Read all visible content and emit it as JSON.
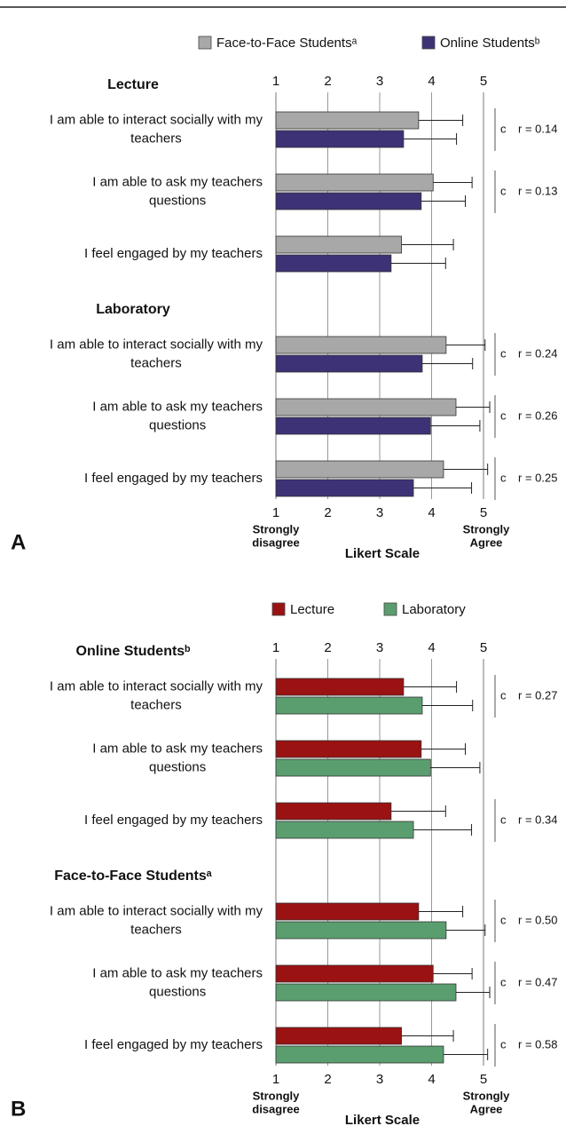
{
  "chart_data": [
    {
      "type": "bar",
      "orientation": "horizontal",
      "panel_label": "A",
      "group_titles": [
        "Lecture",
        "Laboratory"
      ],
      "categories": [
        [
          "I am able to interact socially with my",
          "teachers"
        ],
        [
          "I am able to ask my teachers",
          "questions"
        ],
        [
          "I feel engaged by my teachers"
        ],
        [
          "I am able to interact socially with my",
          "teachers"
        ],
        [
          "I am able to ask my teachers",
          "questions"
        ],
        [
          "I feel engaged by my teachers"
        ]
      ],
      "series": [
        {
          "name": "Face-to-Face Studentsᵃ",
          "color": "#a8a8a8",
          "values": [
            3.75,
            4.03,
            3.42,
            4.28,
            4.47,
            4.23
          ],
          "errors": [
            0.85,
            0.75,
            1.0,
            0.75,
            0.65,
            0.85
          ]
        },
        {
          "name": "Online Studentsᵇ",
          "color": "#3d3276",
          "values": [
            3.46,
            3.8,
            3.22,
            3.82,
            3.98,
            3.65
          ],
          "errors": [
            1.02,
            0.85,
            1.05,
            0.97,
            0.95,
            1.12
          ]
        }
      ],
      "significance": [
        "c",
        "c",
        null,
        "c",
        "c",
        "c"
      ],
      "r_labels": [
        "r = 0.14",
        "r = 0.13",
        null,
        "r = 0.24",
        "r = 0.26",
        "r = 0.25"
      ],
      "xlim": [
        1,
        5
      ],
      "xticks": [
        1,
        2,
        3,
        4,
        5
      ],
      "x_end_labels": [
        [
          "Strongly",
          "disagree"
        ],
        [
          "Strongly",
          "Agree"
        ]
      ],
      "x_label": "Likert Scale",
      "grid": true
    },
    {
      "type": "bar",
      "orientation": "horizontal",
      "panel_label": "B",
      "group_titles": [
        "Online Studentsᵇ",
        "Face-to-Face Studentsᵃ"
      ],
      "categories": [
        [
          "I am able to interact socially with my",
          "teachers"
        ],
        [
          "I am able to ask my teachers",
          "questions"
        ],
        [
          "I feel engaged by my teachers"
        ],
        [
          "I am able to interact socially with my",
          "teachers"
        ],
        [
          "I am able to ask my teachers",
          "questions"
        ],
        [
          "I feel engaged by my teachers"
        ]
      ],
      "series": [
        {
          "name": "Lecture",
          "color": "#9b1212",
          "values": [
            3.46,
            3.8,
            3.22,
            3.75,
            4.03,
            3.42
          ],
          "errors": [
            1.02,
            0.85,
            1.05,
            0.85,
            0.75,
            1.0
          ]
        },
        {
          "name": "Laboratory",
          "color": "#5a9e6f",
          "values": [
            3.82,
            3.98,
            3.65,
            4.28,
            4.47,
            4.23
          ],
          "errors": [
            0.97,
            0.95,
            1.12,
            0.75,
            0.65,
            0.85
          ]
        }
      ],
      "significance": [
        "c",
        null,
        "c",
        "c",
        "c",
        "c"
      ],
      "r_labels": [
        "r = 0.27",
        null,
        "r = 0.34",
        "r = 0.50",
        "r = 0.47",
        "r = 0.58"
      ],
      "xlim": [
        1,
        5
      ],
      "xticks": [
        1,
        2,
        3,
        4,
        5
      ],
      "x_end_labels": [
        [
          "Strongly",
          "disagree"
        ],
        [
          "Strongly",
          "Agree"
        ]
      ],
      "x_label": "Likert Scale",
      "grid": true
    }
  ]
}
